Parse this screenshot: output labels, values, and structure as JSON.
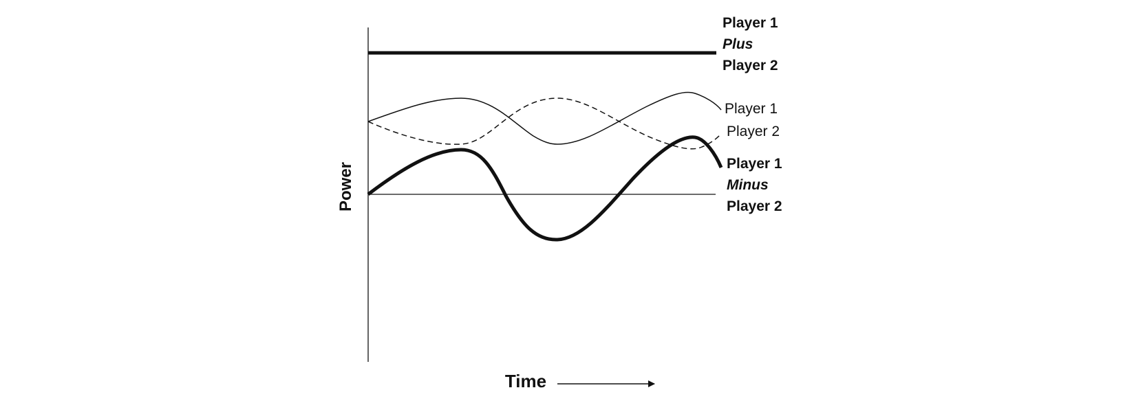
{
  "diagram": {
    "axis_labels": {
      "y": "Power",
      "x": "Time"
    },
    "series_labels": {
      "sum": {
        "line1": "Player 1",
        "operator": "Plus",
        "line2": "Player 2"
      },
      "player1": "Player 1",
      "player2": "Player 2",
      "difference": {
        "line1": "Player 1",
        "operator": "Minus",
        "line2": "Player 2"
      }
    },
    "line_styles": {
      "sum": "thick solid",
      "player1": "thin solid",
      "player2": "thin dashed",
      "difference": "thick solid"
    },
    "colors": {
      "ink": "#111111",
      "background": "#ffffff"
    }
  }
}
